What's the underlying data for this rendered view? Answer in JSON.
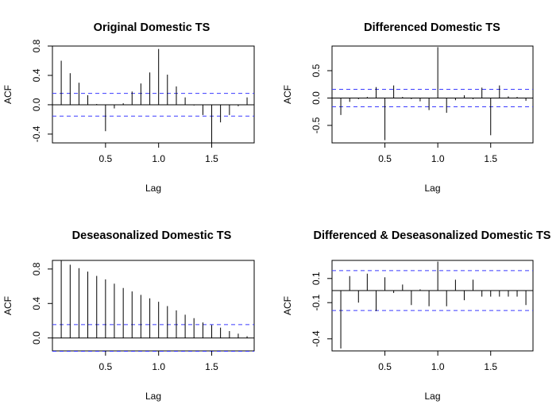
{
  "chart_data": [
    {
      "type": "bar",
      "title": "Original Domestic TS",
      "xlabel": "Lag",
      "ylabel": "ACF",
      "xlim": [
        0,
        1.9
      ],
      "ylim": [
        -0.52,
        0.8
      ],
      "xticks": [
        "0.5",
        "1.0",
        "1.5"
      ],
      "yticks": [
        "-0.4",
        "0.0",
        "0.4",
        "0.8"
      ],
      "ci": 0.155,
      "x": [
        0.083,
        0.167,
        0.25,
        0.333,
        0.417,
        0.5,
        0.583,
        0.667,
        0.75,
        0.833,
        0.917,
        1.0,
        1.083,
        1.167,
        1.25,
        1.333,
        1.417,
        1.5,
        1.583,
        1.667,
        1.75,
        1.833
      ],
      "values": [
        0.6,
        0.43,
        0.3,
        0.13,
        0.01,
        -0.36,
        -0.05,
        0.02,
        0.18,
        0.29,
        0.44,
        0.76,
        0.41,
        0.25,
        0.1,
        -0.01,
        -0.14,
        -0.52,
        -0.24,
        -0.14,
        -0.02,
        0.1
      ]
    },
    {
      "type": "bar",
      "title": "Differenced Domestic TS",
      "xlabel": "Lag",
      "ylabel": "ACF",
      "xlim": [
        0,
        1.9
      ],
      "ylim": [
        -0.82,
        0.95
      ],
      "xticks": [
        "0.5",
        "1.0",
        "1.5"
      ],
      "yticks": [
        "-0.5",
        "0.0",
        "0.5"
      ],
      "ci": 0.16,
      "x": [
        0.083,
        0.167,
        0.25,
        0.333,
        0.417,
        0.5,
        0.583,
        0.667,
        0.75,
        0.833,
        0.917,
        1.0,
        1.083,
        1.167,
        1.25,
        1.333,
        1.417,
        1.5,
        1.583,
        1.667,
        1.75,
        1.833
      ],
      "values": [
        -0.31,
        -0.07,
        -0.02,
        0.02,
        0.2,
        -0.77,
        0.23,
        0.02,
        -0.02,
        -0.06,
        -0.22,
        0.93,
        -0.27,
        -0.04,
        0.05,
        -0.02,
        0.19,
        -0.68,
        0.23,
        0.03,
        0.02,
        -0.05
      ]
    },
    {
      "type": "bar",
      "title": "Deseasonalized Domestic TS",
      "xlabel": "Lag",
      "ylabel": "ACF",
      "xlim": [
        0,
        1.9
      ],
      "ylim": [
        -0.15,
        0.9
      ],
      "xticks": [
        "0.5",
        "1.0",
        "1.5"
      ],
      "yticks": [
        "0.0",
        "0.4",
        "0.8"
      ],
      "ci": 0.155,
      "x": [
        0.083,
        0.167,
        0.25,
        0.333,
        0.417,
        0.5,
        0.583,
        0.667,
        0.75,
        0.833,
        0.917,
        1.0,
        1.083,
        1.167,
        1.25,
        1.333,
        1.417,
        1.5,
        1.583,
        1.667,
        1.75,
        1.833
      ],
      "values": [
        0.9,
        0.85,
        0.81,
        0.77,
        0.72,
        0.68,
        0.63,
        0.58,
        0.54,
        0.5,
        0.46,
        0.42,
        0.37,
        0.32,
        0.27,
        0.23,
        0.18,
        0.15,
        0.12,
        0.08,
        0.05,
        0.02
      ]
    },
    {
      "type": "bar",
      "title": "Differenced & Deseasonalized Domestic TS",
      "xlabel": "Lag",
      "ylabel": "ACF",
      "xlim": [
        0,
        1.9
      ],
      "ylim": [
        -0.5,
        0.25
      ],
      "xticks": [
        "0.5",
        "1.0",
        "1.5"
      ],
      "yticks": [
        "-0.4",
        "-0.1",
        "0.1"
      ],
      "ci": 0.165,
      "x": [
        0.083,
        0.167,
        0.25,
        0.333,
        0.417,
        0.5,
        0.583,
        0.667,
        0.75,
        0.833,
        0.917,
        1.0,
        1.083,
        1.167,
        1.25,
        1.333,
        1.417,
        1.5,
        1.583,
        1.667,
        1.75,
        1.833
      ],
      "values": [
        -0.48,
        0.12,
        -0.1,
        0.14,
        -0.17,
        0.11,
        -0.02,
        0.05,
        -0.12,
        0.01,
        -0.13,
        0.24,
        -0.13,
        0.09,
        -0.08,
        0.09,
        -0.05,
        -0.05,
        -0.05,
        -0.05,
        -0.05,
        -0.12
      ]
    }
  ]
}
